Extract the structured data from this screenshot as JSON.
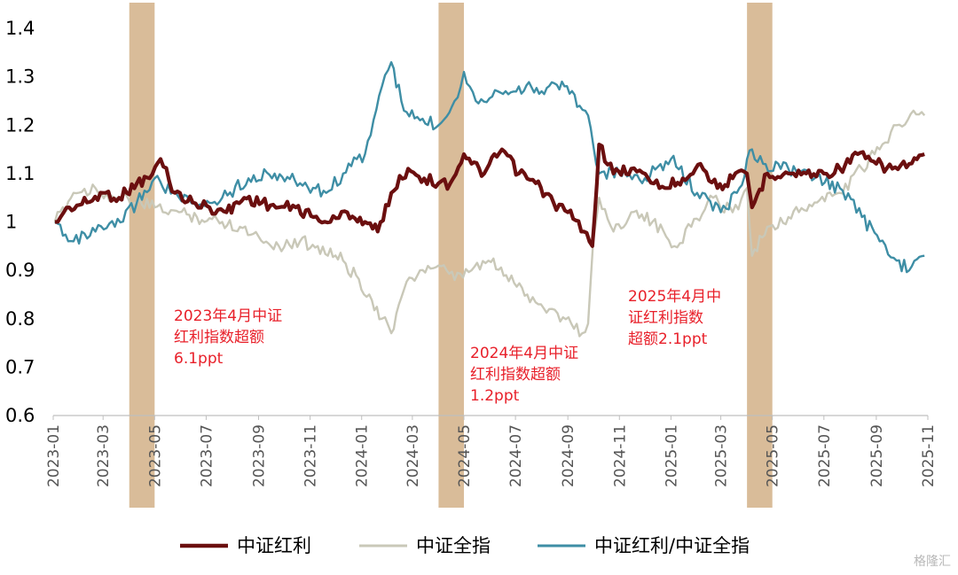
{
  "chart_data": {
    "type": "line",
    "title": "",
    "xlabel": "",
    "ylabel": "",
    "ylim": [
      0.6,
      1.4
    ],
    "yticks": [
      "1.4",
      "1.3",
      "1.2",
      "1.1",
      "1",
      "0.9",
      "0.8",
      "0.7",
      "0.6"
    ],
    "xticks": [
      "2023-01",
      "2023-03",
      "2023-05",
      "2023-07",
      "2023-09",
      "2023-11",
      "2024-01",
      "2024-03",
      "2024-05",
      "2024-07",
      "2024-09",
      "2024-11",
      "2025-01",
      "2025-03",
      "2025-05",
      "2025-07",
      "2025-09",
      "2025-11"
    ],
    "colors": {
      "csi_dividend": "#6b0f0f",
      "csi_all": "#c9c8b8",
      "ratio": "#3e8ea5",
      "highlight": "#d2b087",
      "annotation": "#e8202a"
    },
    "highlight_periods": [
      [
        "2023-04-01",
        "2023-05-01"
      ],
      [
        "2024-04-01",
        "2024-05-01"
      ],
      [
        "2025-04-01",
        "2025-05-01"
      ]
    ],
    "annotations": [
      {
        "lines": [
          "2023年4月中证",
          "红利指数超额",
          "6.1ppt"
        ]
      },
      {
        "lines": [
          "2024年4月中证",
          "红利指数超额",
          "1.2ppt"
        ]
      },
      {
        "lines": [
          "2025年4月中",
          "证红利指数",
          "超额2.1ppt"
        ]
      }
    ],
    "series": [
      {
        "name": "中证红利",
        "x": [
          "2023-01-03",
          "2023-01-20",
          "2023-02-10",
          "2023-03-01",
          "2023-03-20",
          "2023-04-10",
          "2023-04-25",
          "2023-05-08",
          "2023-05-25",
          "2023-06-15",
          "2023-07-05",
          "2023-07-25",
          "2023-08-15",
          "2023-09-05",
          "2023-09-25",
          "2023-10-15",
          "2023-11-05",
          "2023-11-25",
          "2023-12-15",
          "2024-01-05",
          "2024-01-20",
          "2024-02-05",
          "2024-02-25",
          "2024-03-15",
          "2024-04-01",
          "2024-04-15",
          "2024-05-01",
          "2024-05-10",
          "2024-05-25",
          "2024-06-15",
          "2024-07-05",
          "2024-07-25",
          "2024-08-15",
          "2024-09-01",
          "2024-09-20",
          "2024-09-30",
          "2024-10-08",
          "2024-10-25",
          "2024-11-15",
          "2024-12-05",
          "2024-12-25",
          "2025-01-15",
          "2025-02-05",
          "2025-02-25",
          "2025-03-15",
          "2025-04-01",
          "2025-04-07",
          "2025-04-25",
          "2025-05-20",
          "2025-06-10",
          "2025-07-01",
          "2025-07-20",
          "2025-08-10",
          "2025-09-01",
          "2025-09-20",
          "2025-10-10",
          "2025-10-28"
        ],
        "values": [
          1.0,
          1.03,
          1.04,
          1.06,
          1.05,
          1.08,
          1.09,
          1.13,
          1.06,
          1.04,
          1.03,
          1.02,
          1.05,
          1.04,
          1.03,
          1.03,
          1.01,
          1.0,
          1.02,
          1.0,
          0.98,
          1.06,
          1.11,
          1.09,
          1.08,
          1.08,
          1.14,
          1.12,
          1.1,
          1.15,
          1.1,
          1.08,
          1.04,
          1.02,
          0.98,
          0.95,
          1.16,
          1.1,
          1.11,
          1.09,
          1.07,
          1.09,
          1.12,
          1.07,
          1.09,
          1.1,
          1.03,
          1.1,
          1.1,
          1.1,
          1.1,
          1.11,
          1.14,
          1.12,
          1.11,
          1.12,
          1.14
        ]
      },
      {
        "name": "中证全指",
        "x": [
          "2023-01-03",
          "2023-01-25",
          "2023-02-20",
          "2023-03-15",
          "2023-04-10",
          "2023-05-01",
          "2023-05-30",
          "2023-06-20",
          "2023-07-20",
          "2023-08-10",
          "2023-09-01",
          "2023-09-25",
          "2023-10-20",
          "2023-11-10",
          "2023-12-10",
          "2024-01-10",
          "2024-01-25",
          "2024-02-05",
          "2024-02-20",
          "2024-03-10",
          "2024-04-01",
          "2024-04-20",
          "2024-05-10",
          "2024-05-30",
          "2024-06-20",
          "2024-07-15",
          "2024-08-10",
          "2024-09-05",
          "2024-09-18",
          "2024-09-25",
          "2024-10-01",
          "2024-10-08",
          "2024-10-25",
          "2024-11-15",
          "2024-12-10",
          "2025-01-05",
          "2025-01-25",
          "2025-02-20",
          "2025-03-15",
          "2025-04-01",
          "2025-04-07",
          "2025-04-25",
          "2025-05-20",
          "2025-06-20",
          "2025-07-20",
          "2025-08-15",
          "2025-09-05",
          "2025-09-25",
          "2025-10-15",
          "2025-10-28"
        ],
        "values": [
          1.0,
          1.06,
          1.07,
          1.05,
          1.04,
          1.03,
          1.02,
          1.01,
          1.0,
          0.99,
          0.97,
          0.95,
          0.96,
          0.95,
          0.92,
          0.85,
          0.8,
          0.77,
          0.86,
          0.9,
          0.91,
          0.88,
          0.9,
          0.92,
          0.89,
          0.85,
          0.82,
          0.79,
          0.77,
          0.79,
          0.96,
          1.05,
          0.98,
          1.02,
          1.0,
          0.95,
          0.99,
          1.05,
          1.02,
          1.07,
          0.93,
          0.99,
          1.01,
          1.04,
          1.06,
          1.11,
          1.15,
          1.2,
          1.23,
          1.22
        ]
      },
      {
        "name": "中证红利/中证全指",
        "x": [
          "2023-01-03",
          "2023-01-25",
          "2023-02-20",
          "2023-03-15",
          "2023-04-10",
          "2023-05-01",
          "2023-05-30",
          "2023-06-20",
          "2023-07-20",
          "2023-08-20",
          "2023-09-20",
          "2023-10-20",
          "2023-11-20",
          "2023-12-10",
          "2024-01-05",
          "2024-01-25",
          "2024-02-05",
          "2024-02-20",
          "2024-03-10",
          "2024-04-01",
          "2024-04-20",
          "2024-05-01",
          "2024-05-15",
          "2024-06-10",
          "2024-07-05",
          "2024-08-01",
          "2024-08-25",
          "2024-09-15",
          "2024-09-25",
          "2024-10-01",
          "2024-10-08",
          "2024-11-01",
          "2024-12-01",
          "2025-01-01",
          "2025-02-01",
          "2025-03-01",
          "2025-03-20",
          "2025-04-07",
          "2025-04-20",
          "2025-05-20",
          "2025-06-20",
          "2025-07-20",
          "2025-08-15",
          "2025-09-05",
          "2025-09-25",
          "2025-10-10",
          "2025-10-28"
        ],
        "values": [
          1.0,
          0.96,
          0.98,
          0.99,
          1.04,
          1.09,
          1.05,
          1.03,
          1.05,
          1.09,
          1.1,
          1.08,
          1.06,
          1.1,
          1.14,
          1.28,
          1.33,
          1.23,
          1.21,
          1.2,
          1.25,
          1.31,
          1.25,
          1.27,
          1.28,
          1.27,
          1.29,
          1.24,
          1.22,
          1.16,
          1.1,
          1.1,
          1.09,
          1.13,
          1.06,
          1.02,
          1.06,
          1.15,
          1.12,
          1.11,
          1.09,
          1.07,
          1.01,
          0.96,
          0.92,
          0.9,
          0.93
        ]
      }
    ]
  },
  "legend": [
    {
      "label": "中证红利"
    },
    {
      "label": "中证全指"
    },
    {
      "label": "中证红利/中证全指"
    }
  ],
  "watermark": "格隆汇"
}
